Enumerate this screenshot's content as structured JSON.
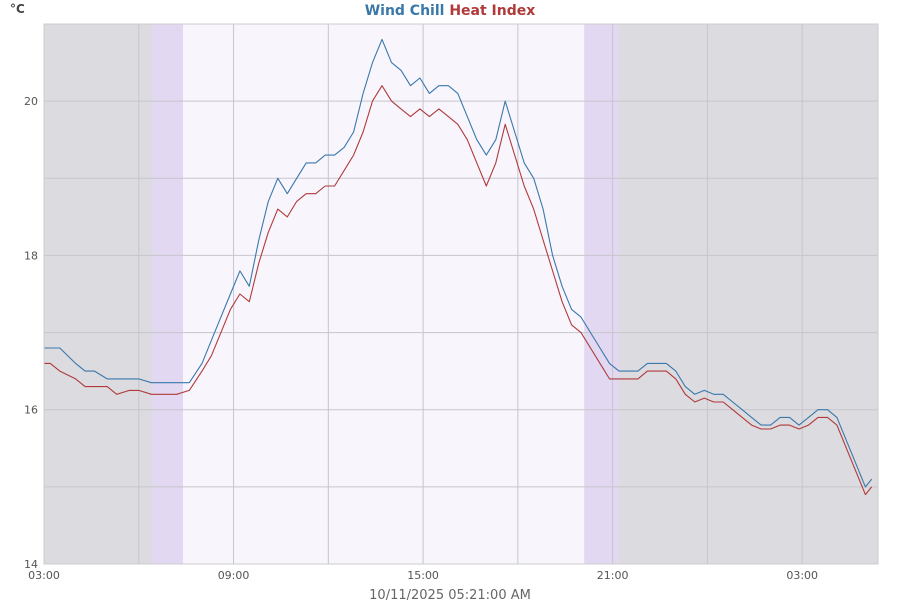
{
  "chart_data": {
    "type": "line",
    "title": "",
    "title_parts": [
      {
        "text": "Wind Chill",
        "color": "#3a78aa"
      },
      {
        "text": " ",
        "color": "#3a78aa"
      },
      {
        "text": "Heat Index",
        "color": "#b03a3a"
      }
    ],
    "ylabel": "°C",
    "xlabel": "10/11/2025 05:21:00 AM",
    "ylim": [
      14,
      21
    ],
    "xlim_hours": [
      3,
      29.4
    ],
    "yticks": [
      14,
      16,
      18,
      20
    ],
    "xticks": [
      {
        "value": 3,
        "label": "03:00"
      },
      {
        "value": 9,
        "label": "09:00"
      },
      {
        "value": 15,
        "label": "15:00"
      },
      {
        "value": 21,
        "label": "21:00"
      },
      {
        "value": 27,
        "label": "03:00"
      }
    ],
    "grid": true,
    "legend": "title",
    "night_background": "#dcdbe0",
    "day_background": "#f8f5fd",
    "twilight_color": "#e2d8f2",
    "daylight_hours": [
      {
        "start": 7.4,
        "end": 20.1
      }
    ],
    "twilight_hours": [
      {
        "start": 6.4,
        "end": 7.4
      },
      {
        "start": 20.1,
        "end": 21.2
      }
    ],
    "series": [
      {
        "name": "Wind Chill",
        "color": "#3a78aa",
        "x": [
          3.0,
          3.2,
          3.5,
          4.0,
          4.3,
          4.6,
          5.0,
          5.3,
          5.7,
          6.0,
          6.4,
          6.8,
          7.2,
          7.6,
          8.0,
          8.3,
          8.6,
          8.9,
          9.2,
          9.5,
          9.8,
          10.1,
          10.4,
          10.7,
          11.0,
          11.3,
          11.6,
          11.9,
          12.2,
          12.5,
          12.8,
          13.1,
          13.4,
          13.7,
          14.0,
          14.3,
          14.6,
          14.9,
          15.2,
          15.5,
          15.8,
          16.1,
          16.4,
          16.7,
          17.0,
          17.3,
          17.6,
          17.9,
          18.2,
          18.5,
          18.8,
          19.1,
          19.4,
          19.7,
          20.0,
          20.3,
          20.6,
          20.9,
          21.2,
          21.5,
          21.8,
          22.1,
          22.4,
          22.7,
          23.0,
          23.3,
          23.6,
          23.9,
          24.2,
          24.5,
          24.8,
          25.1,
          25.4,
          25.7,
          26.0,
          26.3,
          26.6,
          26.9,
          27.2,
          27.5,
          27.8,
          28.1,
          28.4,
          28.7,
          29.0,
          29.2
        ],
        "values": [
          16.8,
          16.8,
          16.8,
          16.6,
          16.5,
          16.5,
          16.4,
          16.4,
          16.4,
          16.4,
          16.35,
          16.35,
          16.35,
          16.35,
          16.6,
          16.9,
          17.2,
          17.5,
          17.8,
          17.6,
          18.2,
          18.7,
          19.0,
          18.8,
          19.0,
          19.2,
          19.2,
          19.3,
          19.3,
          19.4,
          19.6,
          20.1,
          20.5,
          20.8,
          20.5,
          20.4,
          20.2,
          20.3,
          20.1,
          20.2,
          20.2,
          20.1,
          19.8,
          19.5,
          19.3,
          19.5,
          20.0,
          19.6,
          19.2,
          19.0,
          18.6,
          18.0,
          17.6,
          17.3,
          17.2,
          17.0,
          16.8,
          16.6,
          16.5,
          16.5,
          16.5,
          16.6,
          16.6,
          16.6,
          16.5,
          16.3,
          16.2,
          16.25,
          16.2,
          16.2,
          16.1,
          16.0,
          15.9,
          15.8,
          15.8,
          15.9,
          15.9,
          15.8,
          15.9,
          16.0,
          16.0,
          15.9,
          15.6,
          15.3,
          15.0,
          15.1
        ]
      },
      {
        "name": "Heat Index",
        "color": "#b03a3a",
        "x": [
          3.0,
          3.2,
          3.5,
          4.0,
          4.3,
          4.6,
          5.0,
          5.3,
          5.7,
          6.0,
          6.4,
          6.8,
          7.2,
          7.6,
          8.0,
          8.3,
          8.6,
          8.9,
          9.2,
          9.5,
          9.8,
          10.1,
          10.4,
          10.7,
          11.0,
          11.3,
          11.6,
          11.9,
          12.2,
          12.5,
          12.8,
          13.1,
          13.4,
          13.7,
          14.0,
          14.3,
          14.6,
          14.9,
          15.2,
          15.5,
          15.8,
          16.1,
          16.4,
          16.7,
          17.0,
          17.3,
          17.6,
          17.9,
          18.2,
          18.5,
          18.8,
          19.1,
          19.4,
          19.7,
          20.0,
          20.3,
          20.6,
          20.9,
          21.2,
          21.5,
          21.8,
          22.1,
          22.4,
          22.7,
          23.0,
          23.3,
          23.6,
          23.9,
          24.2,
          24.5,
          24.8,
          25.1,
          25.4,
          25.7,
          26.0,
          26.3,
          26.6,
          26.9,
          27.2,
          27.5,
          27.8,
          28.1,
          28.4,
          28.7,
          29.0,
          29.2
        ],
        "values": [
          16.6,
          16.6,
          16.5,
          16.4,
          16.3,
          16.3,
          16.3,
          16.2,
          16.25,
          16.25,
          16.2,
          16.2,
          16.2,
          16.25,
          16.5,
          16.7,
          17.0,
          17.3,
          17.5,
          17.4,
          17.9,
          18.3,
          18.6,
          18.5,
          18.7,
          18.8,
          18.8,
          18.9,
          18.9,
          19.1,
          19.3,
          19.6,
          20.0,
          20.2,
          20.0,
          19.9,
          19.8,
          19.9,
          19.8,
          19.9,
          19.8,
          19.7,
          19.5,
          19.2,
          18.9,
          19.2,
          19.7,
          19.3,
          18.9,
          18.6,
          18.2,
          17.8,
          17.4,
          17.1,
          17.0,
          16.8,
          16.6,
          16.4,
          16.4,
          16.4,
          16.4,
          16.5,
          16.5,
          16.5,
          16.4,
          16.2,
          16.1,
          16.15,
          16.1,
          16.1,
          16.0,
          15.9,
          15.8,
          15.75,
          15.75,
          15.8,
          15.8,
          15.75,
          15.8,
          15.9,
          15.9,
          15.8,
          15.5,
          15.2,
          14.9,
          15.0
        ]
      }
    ]
  }
}
